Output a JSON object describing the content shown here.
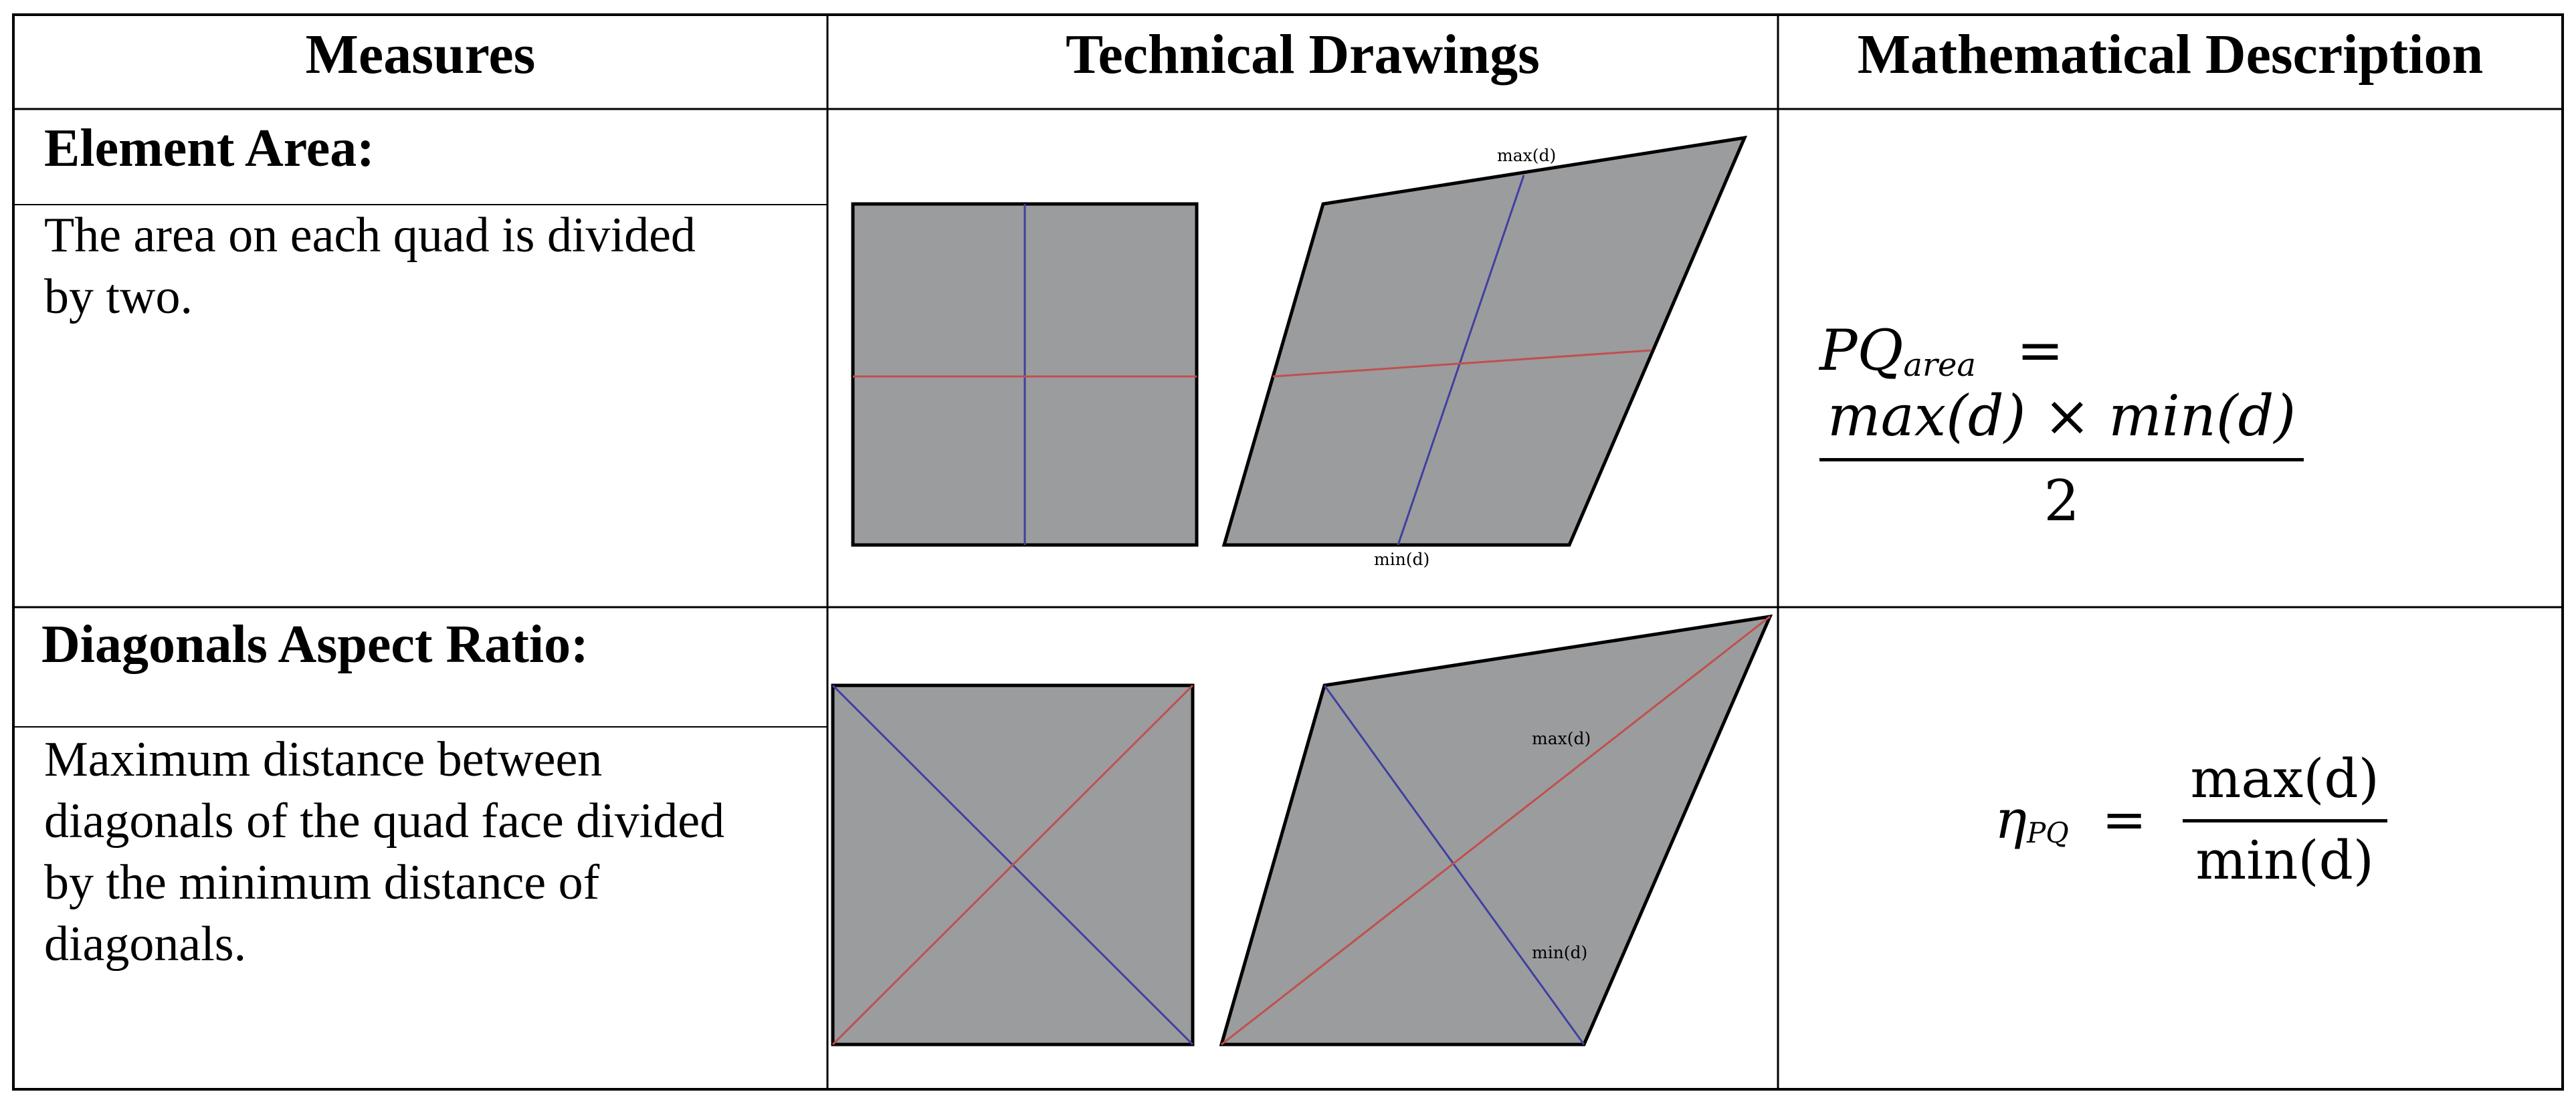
{
  "table": {
    "headers": [
      "Measures",
      "Technical Drawings",
      "Mathematical Description"
    ],
    "rows": [
      {
        "title": "Element Area:",
        "description_lines": [
          "The area on each quad is divided",
          "by two."
        ],
        "drawing_labels": {
          "top": "max(d)",
          "bottom": "min(d)"
        },
        "formula": {
          "symbol": "PQ",
          "subscript": "area",
          "equals": "=",
          "numerator": "max(d) × min(d)",
          "denominator": "2"
        }
      },
      {
        "title": "Diagonals Aspect Ratio:",
        "description_lines": [
          "Maximum distance between",
          "diagonals of the quad face divided",
          "by the minimum distance of",
          "diagonals."
        ],
        "drawing_labels": {
          "upper": "max(d)",
          "lower": "min(d)"
        },
        "formula": {
          "symbol": "η",
          "subscript": "PQ",
          "equals": "=",
          "numerator": "max(d)",
          "denominator": "min(d)"
        }
      }
    ]
  },
  "colors": {
    "quad_fill": "#9b9c9e",
    "red_line": "#c0504d",
    "blue_line": "#4040a0",
    "border": "#000000"
  }
}
